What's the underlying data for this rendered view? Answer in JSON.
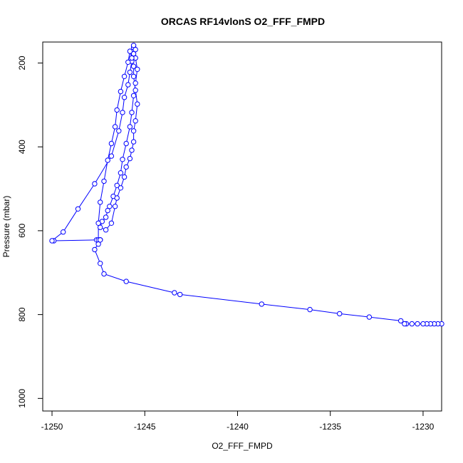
{
  "chart_data": {
    "type": "line",
    "title": "ORCAS RF14vlonS O2_FFF_FMPD",
    "xlabel": "O2_FFF_FMPD",
    "ylabel": "Pressure (mbar)",
    "xlim": [
      -1250.5,
      -1229
    ],
    "ylim": [
      1030,
      150
    ],
    "x_ticks": [
      -1250,
      -1245,
      -1240,
      -1235,
      -1230
    ],
    "y_ticks": [
      200,
      400,
      600,
      800,
      1000
    ],
    "grid": false,
    "line_color": "#0000ff",
    "marker": "open-circle",
    "series": [
      {
        "x": [
          -1229.0,
          -1229.2,
          -1229.4,
          -1229.6,
          -1229.8,
          -1230.0,
          -1230.3,
          -1230.6,
          -1230.9,
          -1231.0,
          -1231.2,
          -1232.9,
          -1234.5,
          -1236.1,
          -1238.7,
          -1243.1,
          -1243.4,
          -1246.0,
          -1247.2,
          -1247.4,
          -1247.7,
          -1247.4,
          -1247.6,
          -1247.5,
          -1247.4,
          -1247.4,
          -1249.9,
          -1250.0,
          -1249.4,
          -1248.6,
          -1247.7,
          -1246.8,
          -1246.4,
          -1246.2,
          -1246.1,
          -1245.9,
          -1245.8,
          -1245.7,
          -1245.6,
          -1245.6,
          -1245.6,
          -1245.5,
          -1245.5,
          -1245.4,
          -1245.5,
          -1245.6,
          -1245.7,
          -1245.8,
          -1246.0,
          -1246.2,
          -1246.3,
          -1246.5,
          -1246.7,
          -1246.9,
          -1247.0,
          -1247.1,
          -1247.3,
          -1247.4,
          -1247.1,
          -1246.8,
          -1246.6,
          -1246.5,
          -1246.3,
          -1246.1,
          -1246.0,
          -1245.8,
          -1245.7,
          -1245.6,
          -1245.6,
          -1245.5,
          -1245.4,
          -1245.5,
          -1245.6,
          -1245.6,
          -1245.7,
          -1245.8,
          -1245.9,
          -1246.1,
          -1246.3,
          -1246.5,
          -1246.6,
          -1246.8,
          -1247.0,
          -1247.2,
          -1247.4,
          -1247.5,
          -1247.5
        ],
        "y": [
          822,
          822,
          822,
          822,
          822,
          822,
          822,
          822,
          822,
          822,
          815,
          806,
          798,
          788,
          775,
          752,
          748,
          721,
          703,
          678,
          645,
          622,
          622,
          622,
          622,
          622,
          624,
          624,
          603,
          548,
          488,
          422,
          362,
          318,
          282,
          252,
          222,
          196,
          178,
          163,
          158,
          168,
          188,
          215,
          248,
          278,
          318,
          352,
          392,
          430,
          462,
          492,
          518,
          542,
          552,
          568,
          578,
          592,
          598,
          582,
          542,
          522,
          498,
          472,
          448,
          428,
          408,
          388,
          362,
          338,
          298,
          265,
          232,
          208,
          188,
          172,
          198,
          232,
          268,
          312,
          352,
          392,
          432,
          482,
          532,
          582,
          632
        ]
      }
    ]
  }
}
